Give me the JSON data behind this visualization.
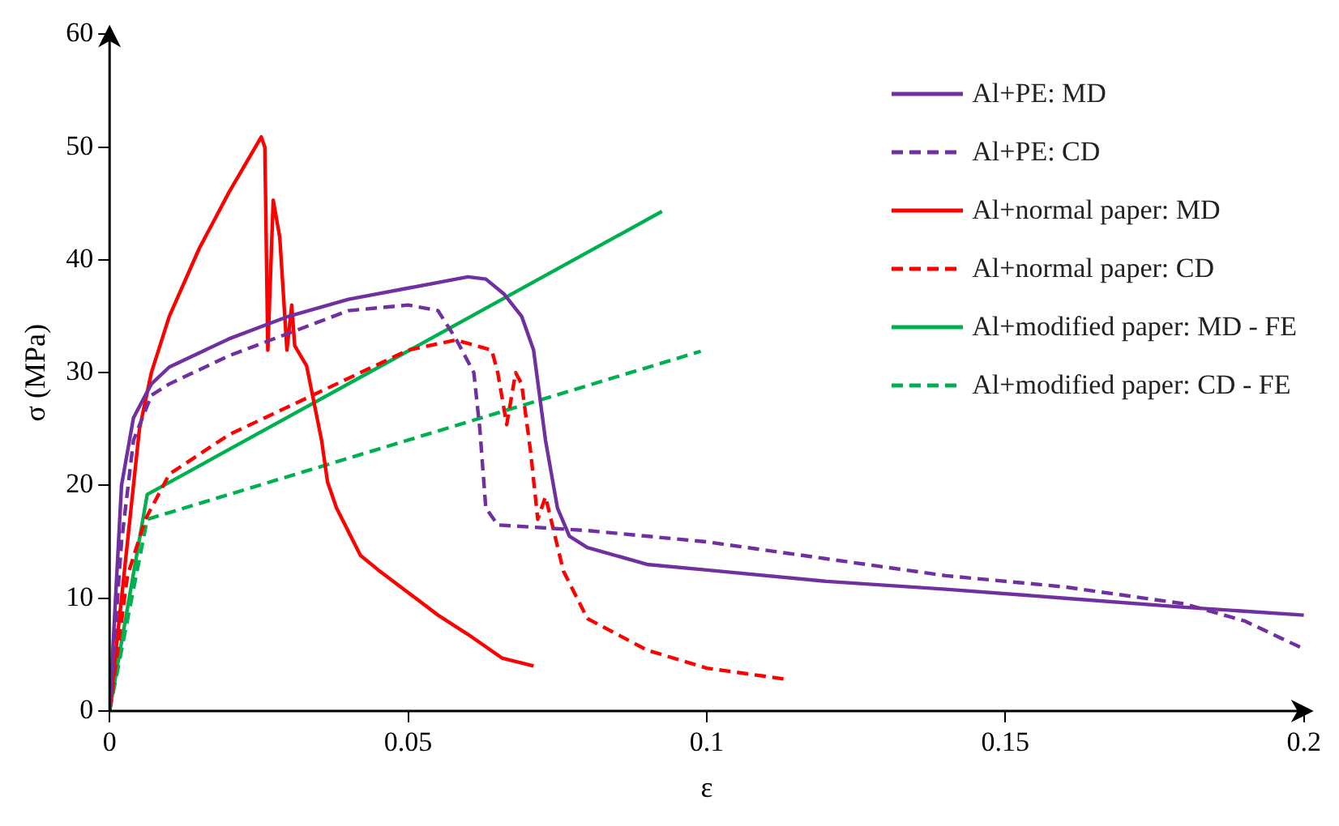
{
  "chart_data": {
    "type": "line",
    "xlabel": "ε",
    "ylabel": "σ (MPa)",
    "xlim": [
      0,
      0.2
    ],
    "xticks": [
      0,
      0.05,
      0.1,
      0.15,
      0.2
    ],
    "ylim": [
      0,
      60
    ],
    "yticks": [
      0,
      10,
      20,
      30,
      40,
      50,
      60
    ],
    "grid": false,
    "legend": "top right",
    "marker": "none",
    "series": [
      {
        "name": "Al+PE: MD",
        "color": "#7030a0",
        "line_style": "solid",
        "x": [
          0,
          0.001,
          0.002,
          0.004,
          0.007,
          0.01,
          0.02,
          0.03,
          0.04,
          0.05,
          0.06,
          0.063,
          0.066,
          0.069,
          0.071,
          0.073,
          0.075,
          0.077,
          0.08,
          0.09,
          0.1,
          0.12,
          0.14,
          0.16,
          0.18,
          0.2
        ],
        "values": [
          0,
          10,
          20,
          26,
          29,
          30.5,
          33,
          35,
          36.5,
          37.5,
          38.5,
          38.3,
          37,
          35,
          32,
          24,
          18,
          15.5,
          14.5,
          13,
          12.5,
          11.5,
          10.8,
          10,
          9.2,
          8.5
        ]
      },
      {
        "name": "Al+PE: CD",
        "color": "#7030a0",
        "line_style": "dashed",
        "x": [
          0,
          0.002,
          0.004,
          0.007,
          0.01,
          0.02,
          0.03,
          0.04,
          0.05,
          0.055,
          0.058,
          0.061,
          0.062,
          0.063,
          0.065,
          0.08,
          0.1,
          0.12,
          0.14,
          0.16,
          0.18,
          0.19,
          0.2
        ],
        "values": [
          0,
          15,
          24,
          28,
          29,
          31.5,
          33.5,
          35.5,
          36,
          35.5,
          33,
          30,
          25,
          18,
          16.5,
          16,
          15,
          13.5,
          12,
          11,
          9.5,
          8,
          5.5
        ]
      },
      {
        "name": "Al+normal paper: MD",
        "color": "#ff0000",
        "line_style": "solid",
        "x": [
          0,
          0.003,
          0.005,
          0.007,
          0.01,
          0.015,
          0.02,
          0.0254,
          0.026,
          0.0265,
          0.0274,
          0.0285,
          0.0297,
          0.0305,
          0.031,
          0.033,
          0.0355,
          0.0365,
          0.038,
          0.042,
          0.045,
          0.05,
          0.055,
          0.06,
          0.0657,
          0.071
        ],
        "values": [
          0,
          15,
          25,
          30,
          35,
          41,
          46,
          50.9,
          50,
          32,
          45.3,
          42,
          32,
          36,
          32.4,
          30.6,
          24,
          20.3,
          18,
          13.8,
          12.5,
          10.5,
          8.5,
          6.8,
          4.7,
          4
        ]
      },
      {
        "name": "Al+normal paper: CD",
        "color": "#ff0000",
        "line_style": "dashed",
        "x": [
          0,
          0.003,
          0.006,
          0.01,
          0.02,
          0.03,
          0.04,
          0.05,
          0.058,
          0.064,
          0.065,
          0.0665,
          0.068,
          0.069,
          0.0705,
          0.0717,
          0.073,
          0.076,
          0.08,
          0.09,
          0.1,
          0.1135
        ],
        "values": [
          0,
          12,
          17,
          21,
          24.5,
          27,
          29.5,
          32,
          32.9,
          32,
          30,
          25.4,
          30,
          29,
          23,
          17,
          19,
          12.4,
          8.2,
          5.4,
          3.8,
          2.8
        ]
      },
      {
        "name": "Al+modified paper: MD - FE",
        "color": "#00b050",
        "line_style": "solid",
        "x": [
          0,
          0.0063,
          0.0925
        ],
        "values": [
          0,
          19.2,
          44.3
        ]
      },
      {
        "name": "Al+modified paper: CD - FE",
        "color": "#00b050",
        "line_style": "dashed",
        "x": [
          0,
          0.0063,
          0.099
        ],
        "values": [
          0,
          17,
          31.9
        ]
      }
    ]
  }
}
